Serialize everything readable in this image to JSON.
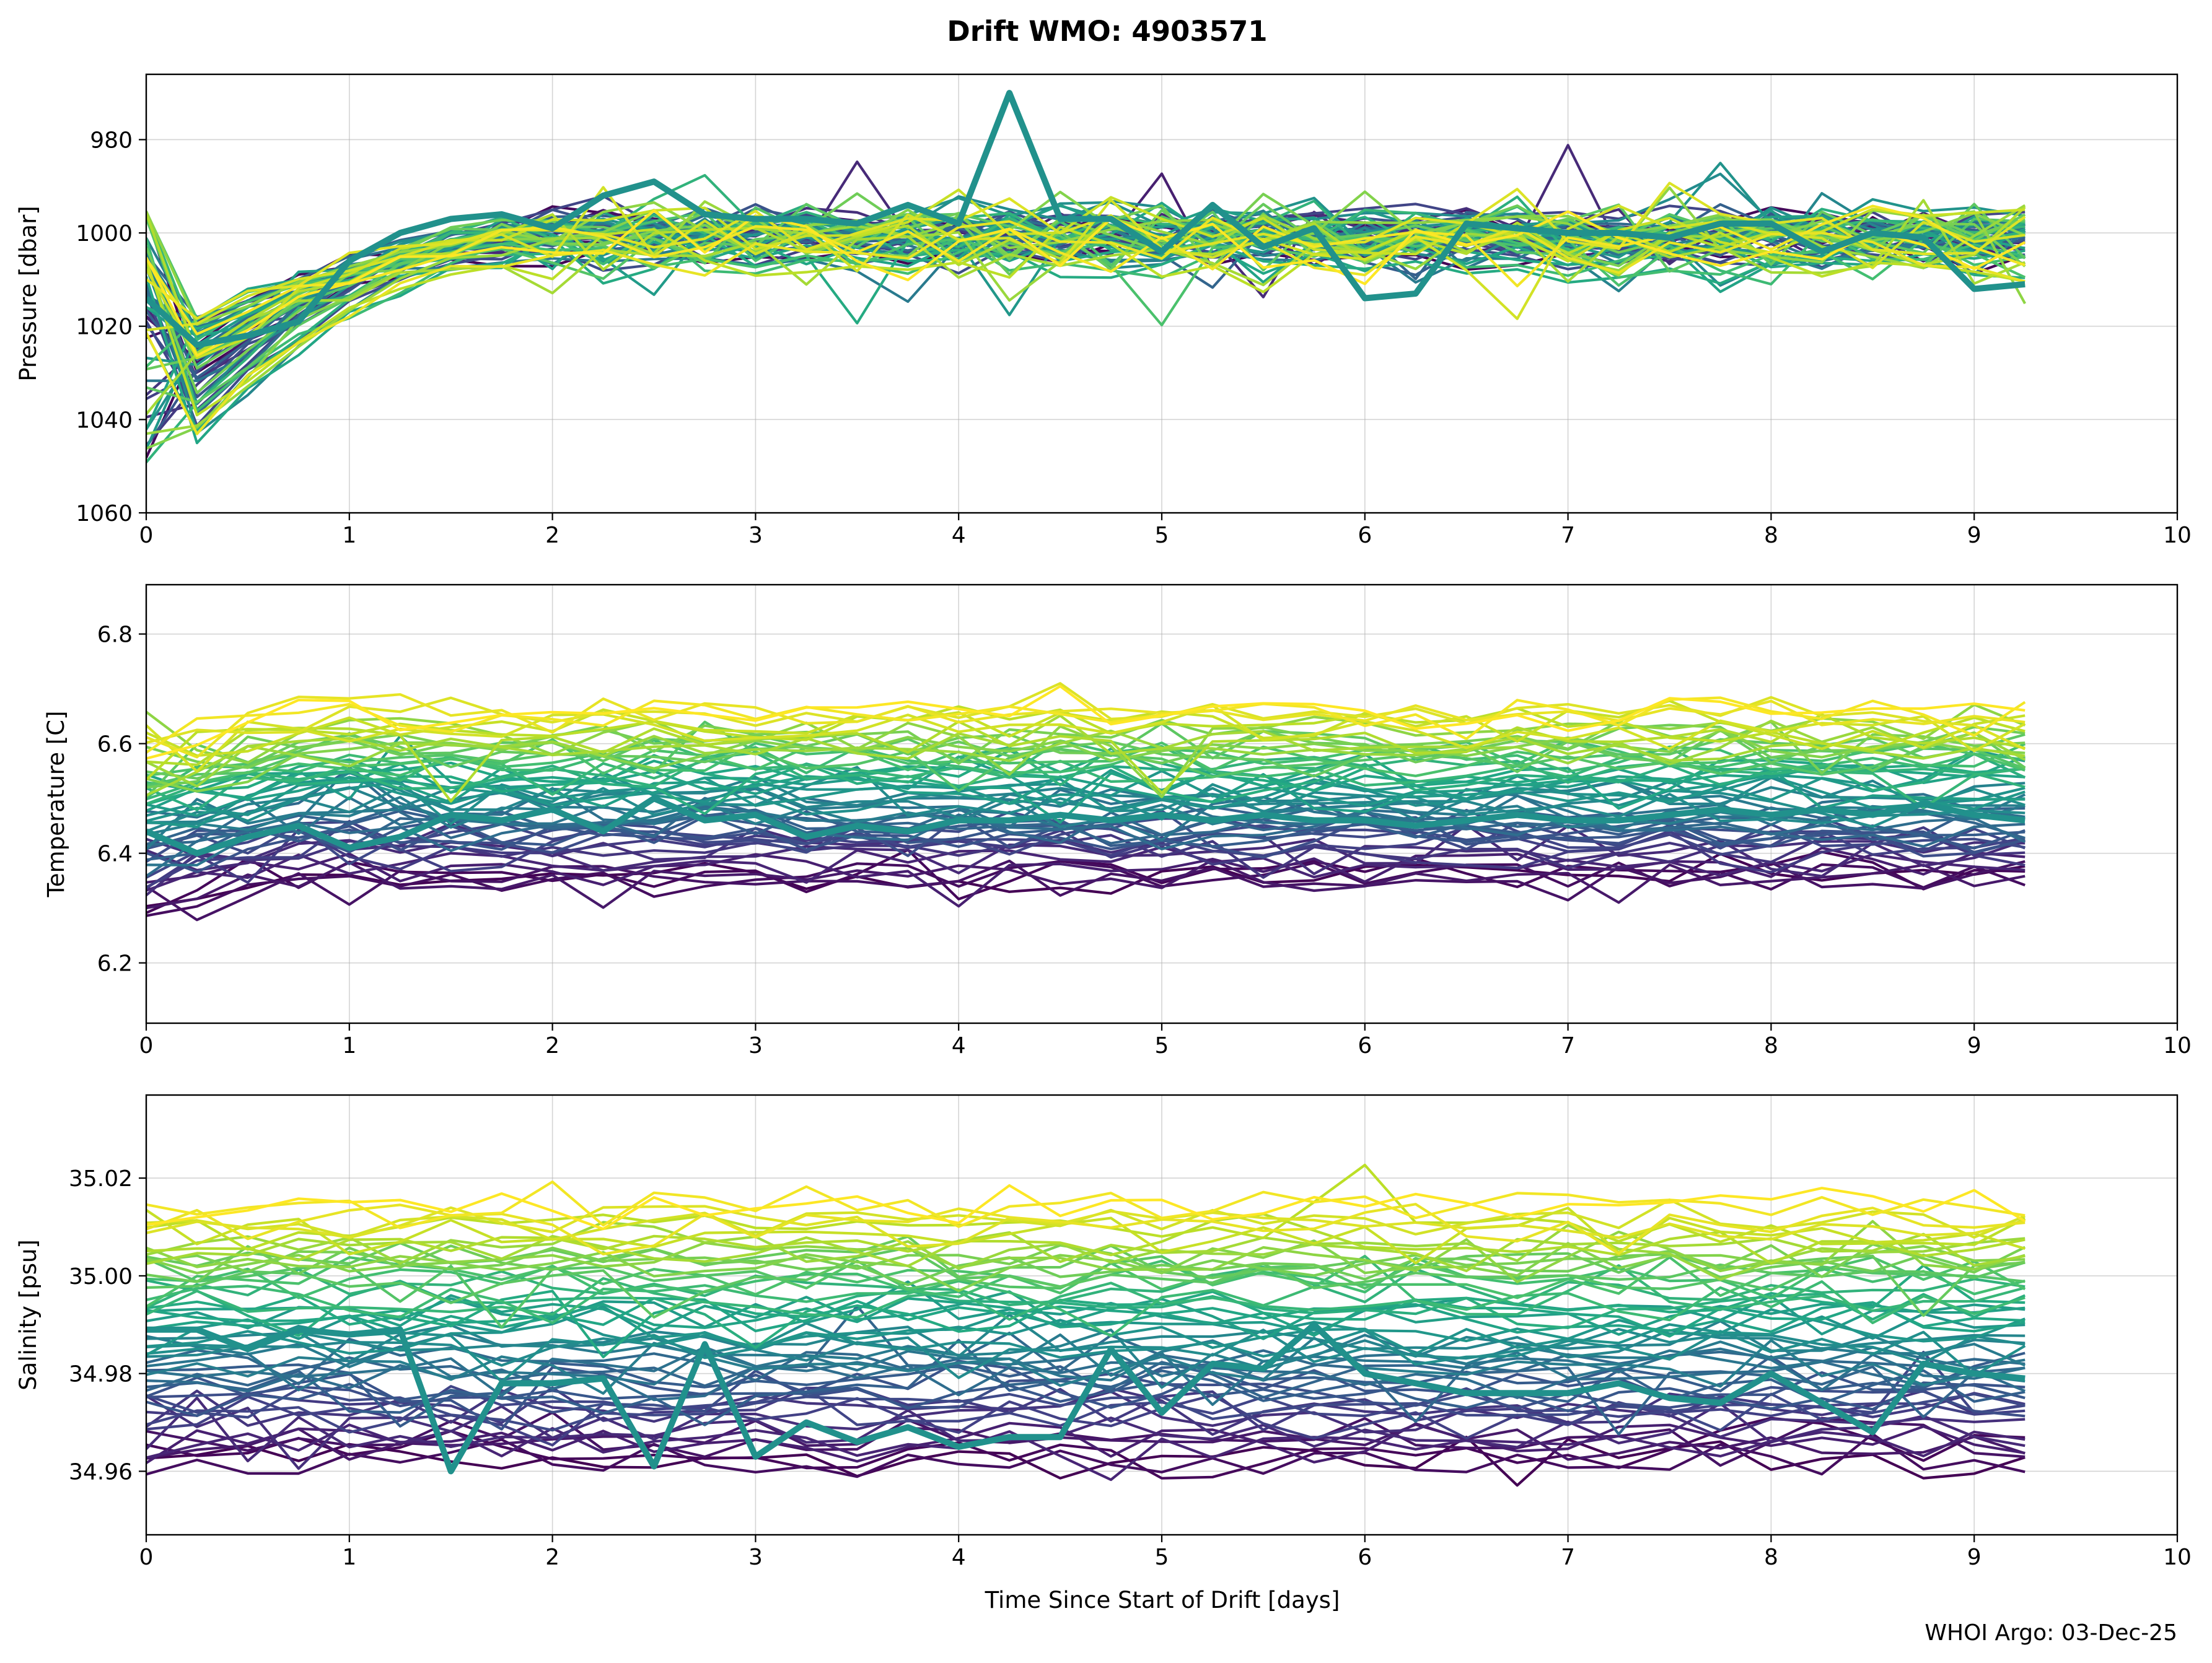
{
  "figure": {
    "title": "Drift WMO: 4903571",
    "xlabel": "Time Since Start of Drift [days]",
    "footer": "WHOI Argo: 03-Dec-25"
  },
  "chart_data": [
    {
      "type": "line",
      "ylabel": "Pressure [dbar]",
      "xlim": [
        0,
        10
      ],
      "ylim": [
        1060,
        966
      ],
      "y_inverted": true,
      "xticks": [
        0,
        1,
        2,
        3,
        4,
        5,
        6,
        7,
        8,
        9,
        10
      ],
      "yticks": [
        980,
        1000,
        1020,
        1040,
        1060
      ],
      "grid": true,
      "x": [
        0,
        0.25,
        0.5,
        0.75,
        1,
        1.25,
        1.5,
        1.75,
        2,
        2.25,
        2.5,
        2.75,
        3,
        3.25,
        3.5,
        3.75,
        4,
        4.25,
        4.5,
        4.75,
        5,
        5.25,
        5.5,
        5.75,
        6,
        6.25,
        6.5,
        6.75,
        7,
        7.25,
        7.5,
        7.75,
        8,
        8.25,
        8.5,
        8.75,
        9,
        9.25
      ],
      "series_count": 60,
      "highlight_series": {
        "color": "#21918c",
        "values": [
          1014,
          1024,
          1022,
          1019,
          1006,
          1000,
          997,
          996,
          999,
          992,
          989,
          996,
          997,
          997,
          998,
          994,
          998,
          970,
          997,
          997,
          1004,
          994,
          1003,
          999,
          1014,
          1013,
          998,
          999,
          1000,
          1000,
          1001,
          998,
          998,
          1004,
          1000,
          1001,
          1012,
          1011
        ]
      }
    },
    {
      "type": "line",
      "ylabel": "Temperature [C]",
      "xlim": [
        0,
        10
      ],
      "ylim": [
        6.09,
        6.89
      ],
      "xticks": [
        0,
        1,
        2,
        3,
        4,
        5,
        6,
        7,
        8,
        9,
        10
      ],
      "yticks": [
        6.2,
        6.4,
        6.6,
        6.8
      ],
      "grid": true,
      "x": [
        0,
        0.25,
        0.5,
        0.75,
        1,
        1.25,
        1.5,
        1.75,
        2,
        2.25,
        2.5,
        2.75,
        3,
        3.25,
        3.5,
        3.75,
        4,
        4.25,
        4.5,
        4.75,
        5,
        5.25,
        5.5,
        5.75,
        6,
        6.25,
        6.5,
        6.75,
        7,
        7.25,
        7.5,
        7.75,
        8,
        8.25,
        8.5,
        8.75,
        9,
        9.25
      ],
      "series_count": 60,
      "highlight_series": {
        "color": "#21918c",
        "values": [
          6.44,
          6.4,
          6.43,
          6.45,
          6.41,
          6.43,
          6.47,
          6.46,
          6.48,
          6.44,
          6.5,
          6.46,
          6.47,
          6.43,
          6.45,
          6.44,
          6.46,
          6.46,
          6.47,
          6.46,
          6.47,
          6.46,
          6.47,
          6.46,
          6.46,
          6.45,
          6.46,
          6.47,
          6.46,
          6.46,
          6.47,
          6.48,
          6.47,
          6.48,
          6.47,
          6.49,
          6.47,
          6.46
        ]
      }
    },
    {
      "type": "line",
      "ylabel": "Salinity [psu]",
      "xlim": [
        0,
        10
      ],
      "ylim": [
        34.947,
        35.037
      ],
      "xticks": [
        0,
        1,
        2,
        3,
        4,
        5,
        6,
        7,
        8,
        9,
        10
      ],
      "yticks": [
        34.96,
        34.98,
        35.0,
        35.02
      ],
      "ytick_labels": [
        "34.96",
        "34.98",
        "35.00",
        "35.02"
      ],
      "grid": true,
      "x": [
        0,
        0.25,
        0.5,
        0.75,
        1,
        1.25,
        1.5,
        1.75,
        2,
        2.25,
        2.5,
        2.75,
        3,
        3.25,
        3.5,
        3.75,
        4,
        4.25,
        4.5,
        4.75,
        5,
        5.25,
        5.5,
        5.75,
        6,
        6.25,
        6.5,
        6.75,
        7,
        7.25,
        7.5,
        7.75,
        8,
        8.25,
        8.5,
        8.75,
        9,
        9.25
      ],
      "series_count": 60,
      "highlight_series": {
        "color": "#21918c",
        "values": [
          34.989,
          34.989,
          34.985,
          34.989,
          34.988,
          34.989,
          34.96,
          34.978,
          34.978,
          34.979,
          34.961,
          34.986,
          34.963,
          34.97,
          34.966,
          34.969,
          34.965,
          34.967,
          34.967,
          34.985,
          34.972,
          34.982,
          34.981,
          34.99,
          34.98,
          34.978,
          34.976,
          34.976,
          34.976,
          34.978,
          34.975,
          34.974,
          34.98,
          34.974,
          34.968,
          34.982,
          34.98,
          34.979
        ]
      }
    }
  ]
}
